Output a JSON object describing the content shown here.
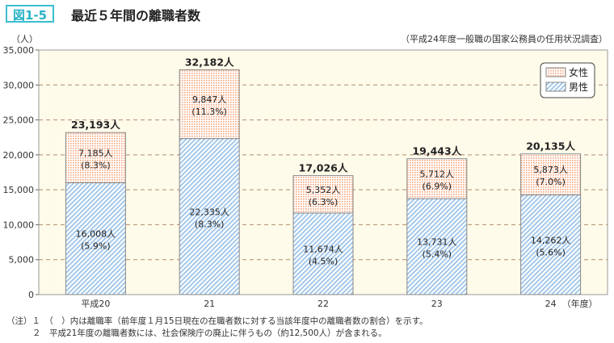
{
  "figure_label": "図1-5",
  "chart_data": {
    "type": "bar",
    "stacked": true,
    "title": "最近５年間の離職者数",
    "source": "（平成24年度一般職の国家公務員の任用状況調査）",
    "ylabel": "（人）",
    "ylim": [
      0,
      35000
    ],
    "yticks": [
      "0",
      "5,000",
      "10,000",
      "15,000",
      "20,000",
      "25,000",
      "30,000",
      "35,000"
    ],
    "grid": true,
    "legend_position": "top-right",
    "categories": [
      "平成20",
      "21",
      "22",
      "23",
      "24"
    ],
    "x_unit": "（年度）",
    "series": [
      {
        "name": "男性",
        "color": "#9cc4ea",
        "pattern": "diagonal-hatch",
        "values": [
          16008,
          22335,
          11674,
          13731,
          14262
        ],
        "labels": [
          "16,008人",
          "22,335人",
          "11,674人",
          "13,731人",
          "14,262人"
        ],
        "rates": [
          "(5.9%)",
          "(8.3%)",
          "(4.5%)",
          "(5.4%)",
          "(5.6%)"
        ]
      },
      {
        "name": "女性",
        "color": "#f5a57a",
        "pattern": "dots",
        "values": [
          7185,
          9847,
          5352,
          5712,
          5873
        ],
        "labels": [
          "7,185人",
          "9,847人",
          "5,352人",
          "5,712人",
          "5,873人"
        ],
        "rates": [
          "(8.3%)",
          "(11.3%)",
          "(6.3%)",
          "(6.9%)",
          "(7.0%)"
        ]
      }
    ],
    "totals": [
      "23,193人",
      "32,182人",
      "17,026人",
      "19,443人",
      "20,135人"
    ]
  },
  "notes": [
    "（注）１　（　）内は離職率（前年度１月15日現在の在職者数に対する当該年度中の離職者数の割合）を示す。",
    "２　平成21年度の離職者数には、社会保険庁の廃止に伴うもの（約12,500人）が含まれる。"
  ]
}
